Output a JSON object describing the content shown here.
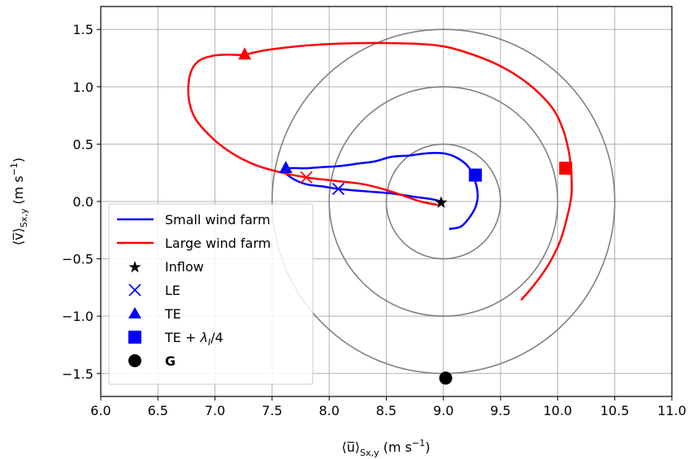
{
  "chart_data": {
    "type": "line",
    "xlabel_main": "⟨u̅⟩",
    "xlabel_sub": "Sx,y",
    "xlabel_unit": " (m s",
    "xlabel_exp": "−1",
    "xlabel_close": ")",
    "ylabel_main": "⟨v̅⟩",
    "ylabel_sub": "Sx,y",
    "ylabel_unit": " (m s",
    "ylabel_exp": "−1",
    "ylabel_close": ")",
    "xlim": [
      6.0,
      11.0
    ],
    "ylim": [
      -1.7,
      1.7
    ],
    "xticks": [
      6.0,
      6.5,
      7.0,
      7.5,
      8.0,
      8.5,
      9.0,
      9.5,
      10.0,
      10.5,
      11.0
    ],
    "yticks": [
      -1.5,
      -1.0,
      -0.5,
      0.0,
      0.5,
      1.0,
      1.5
    ],
    "xtick_labels": [
      "6.0",
      "6.5",
      "7.0",
      "7.5",
      "8.0",
      "8.5",
      "9.0",
      "9.5",
      "10.0",
      "10.5",
      "11.0"
    ],
    "ytick_labels": [
      "−1.5",
      "−1.0",
      "−0.5",
      "0.0",
      "0.5",
      "1.0",
      "1.5"
    ],
    "grid": true,
    "legend_position": "lower-left",
    "circles": {
      "center": [
        9.0,
        0.0
      ],
      "radii": [
        0.5,
        1.0,
        1.5
      ],
      "color": "#808080"
    },
    "series": [
      {
        "name": "Small wind farm",
        "color": "#0000ff",
        "x": [
          9.05,
          9.15,
          9.22,
          9.28,
          9.3,
          9.28,
          9.22,
          9.12,
          9.0,
          8.85,
          8.7,
          8.55,
          8.4,
          8.25,
          8.1,
          7.95,
          7.8,
          7.65,
          7.6,
          7.68,
          7.8,
          7.95,
          8.08,
          8.3,
          8.55,
          8.75,
          8.9,
          8.98
        ],
        "y": [
          -0.24,
          -0.22,
          -0.15,
          -0.05,
          0.05,
          0.17,
          0.3,
          0.38,
          0.42,
          0.42,
          0.4,
          0.39,
          0.35,
          0.33,
          0.31,
          0.3,
          0.29,
          0.29,
          0.27,
          0.2,
          0.15,
          0.13,
          0.11,
          0.09,
          0.07,
          0.04,
          0.02,
          0.0
        ]
      },
      {
        "name": "Large wind farm",
        "color": "#ff0000",
        "x": [
          9.68,
          9.8,
          9.92,
          10.02,
          10.08,
          10.12,
          10.12,
          10.1,
          10.05,
          9.95,
          9.75,
          9.5,
          9.2,
          8.95,
          8.6,
          8.2,
          7.8,
          7.45,
          7.25,
          7.12,
          6.98,
          6.85,
          6.78,
          6.77,
          6.83,
          6.98,
          7.15,
          7.35,
          7.55,
          7.8,
          8.05,
          8.3,
          8.5,
          8.65,
          8.8,
          8.95
        ],
        "y": [
          -0.86,
          -0.72,
          -0.55,
          -0.35,
          -0.15,
          0.05,
          0.25,
          0.42,
          0.62,
          0.82,
          1.02,
          1.18,
          1.3,
          1.36,
          1.38,
          1.38,
          1.36,
          1.32,
          1.28,
          1.28,
          1.27,
          1.22,
          1.1,
          0.9,
          0.72,
          0.55,
          0.42,
          0.32,
          0.26,
          0.21,
          0.18,
          0.15,
          0.1,
          0.05,
          0.0,
          -0.03
        ]
      }
    ],
    "markers": {
      "inflow": {
        "name": "Inflow",
        "x": 8.98,
        "y": -0.01,
        "color": "#000000"
      },
      "le": [
        {
          "series": "Small wind farm",
          "x": 8.08,
          "y": 0.11,
          "color": "#0000ff"
        },
        {
          "series": "Large wind farm",
          "x": 7.8,
          "y": 0.21,
          "color": "#ff0000"
        }
      ],
      "te": [
        {
          "series": "Small wind farm",
          "x": 7.62,
          "y": 0.29,
          "color": "#0000ff"
        },
        {
          "series": "Large wind farm",
          "x": 7.26,
          "y": 1.28,
          "color": "#ff0000"
        }
      ],
      "te_quarter": [
        {
          "series": "Small wind farm",
          "x": 9.28,
          "y": 0.23,
          "color": "#0000ff"
        },
        {
          "series": "Large wind farm",
          "x": 10.07,
          "y": 0.29,
          "color": "#ff0000"
        }
      ],
      "g": {
        "x": 9.02,
        "y": -1.54,
        "color": "#000000"
      }
    },
    "legend": {
      "small": "Small wind farm",
      "large": "Large wind farm",
      "inflow": "Inflow",
      "le": "LE",
      "te": "TE",
      "te_quarter_prefix": "TE + ",
      "te_quarter_lambda": "λ",
      "te_quarter_sub": "I",
      "te_quarter_suffix": "/4",
      "g": "G"
    }
  }
}
